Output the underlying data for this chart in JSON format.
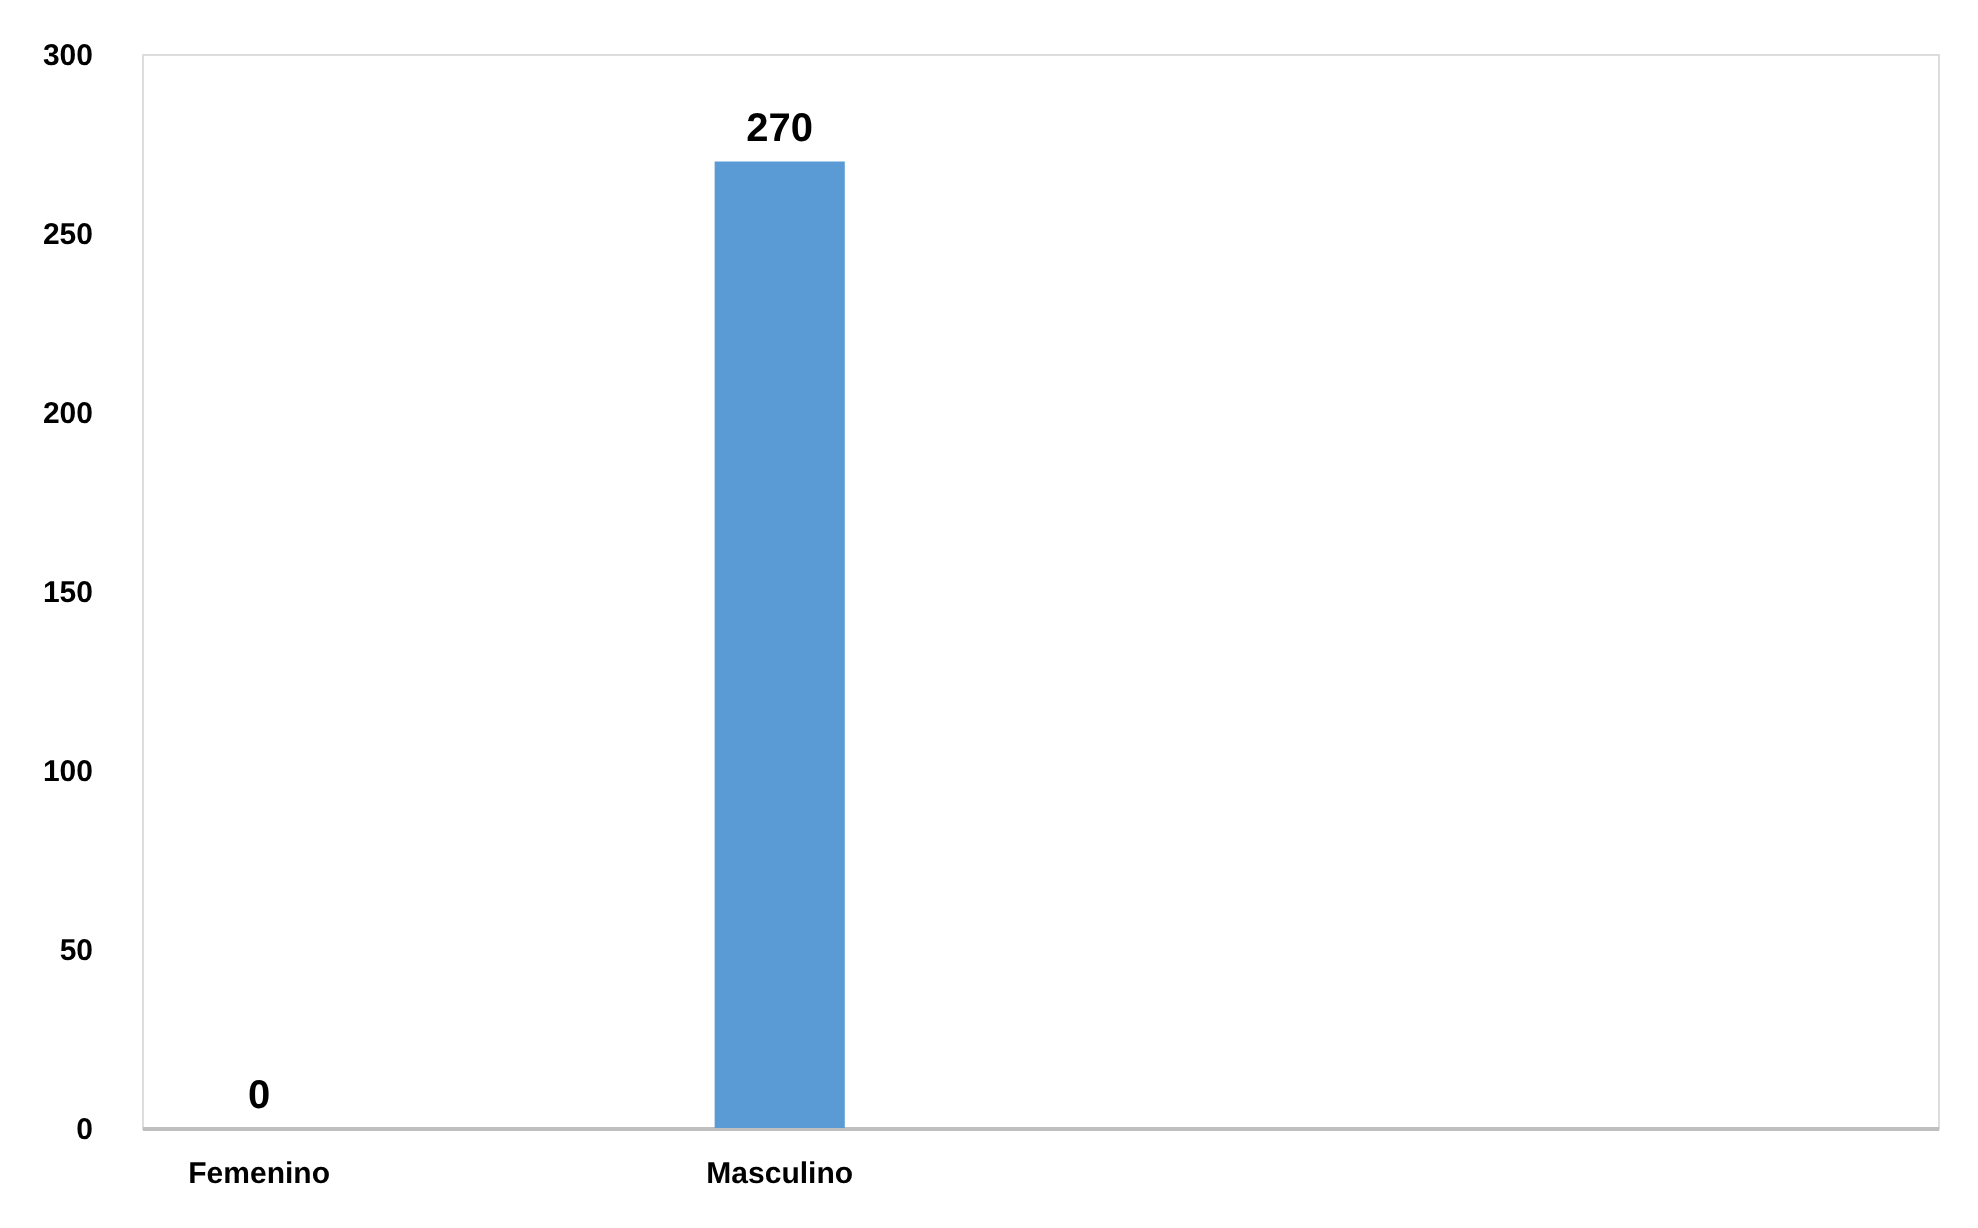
{
  "chart_data": {
    "type": "bar",
    "categories": [
      "Femenino",
      "Masculino",
      null,
      null
    ],
    "values": [
      0,
      270,
      null,
      null
    ],
    "color": "#5b9bd5",
    "ylim": [
      0,
      300
    ],
    "yticks": [
      0,
      50,
      100,
      150,
      200,
      250,
      300
    ],
    "grid": false,
    "data_labels": true
  }
}
